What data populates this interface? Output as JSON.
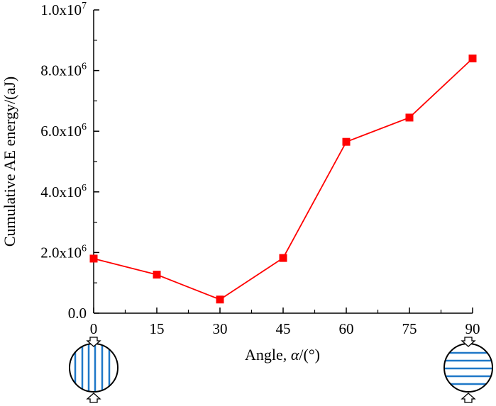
{
  "chart_data": {
    "type": "line",
    "title": "",
    "xlabel": "Angle, ",
    "xlabel_symbol": "α",
    "xlabel_unit": "/(°)",
    "ylabel": "Cumulative  AE energy/(aJ)",
    "x": [
      0,
      15,
      30,
      45,
      60,
      75,
      90
    ],
    "x_ticks": [
      "0",
      "15",
      "30",
      "45",
      "60",
      "75",
      "90"
    ],
    "xlim": [
      0,
      90
    ],
    "ylim": [
      0,
      10000000
    ],
    "y_ticks": [
      {
        "value": 0,
        "mantissa": "0.0",
        "exponent": ""
      },
      {
        "value": 2000000,
        "mantissa": "2.0x10",
        "exponent": "6"
      },
      {
        "value": 4000000,
        "mantissa": "4.0x10",
        "exponent": "6"
      },
      {
        "value": 6000000,
        "mantissa": "6.0x10",
        "exponent": "6"
      },
      {
        "value": 8000000,
        "mantissa": "8.0x10",
        "exponent": "6"
      },
      {
        "value": 10000000,
        "mantissa": "1.0x10",
        "exponent": "7"
      }
    ],
    "series": [
      {
        "values": [
          1800000,
          1270000,
          450000,
          1820000,
          5650000,
          6450000,
          8400000
        ],
        "color": "#ff0000",
        "marker": "square"
      }
    ],
    "grid": false,
    "legend": "none"
  },
  "colors": {
    "series": "#ff0000",
    "layer_lines": "#1f78c8",
    "axis": "#000000"
  },
  "schematics": [
    {
      "angle": 0,
      "layers": "vertical",
      "load": "vertical arrows top and bottom"
    },
    {
      "angle": 90,
      "layers": "horizontal",
      "load": "vertical arrows top and bottom"
    }
  ]
}
